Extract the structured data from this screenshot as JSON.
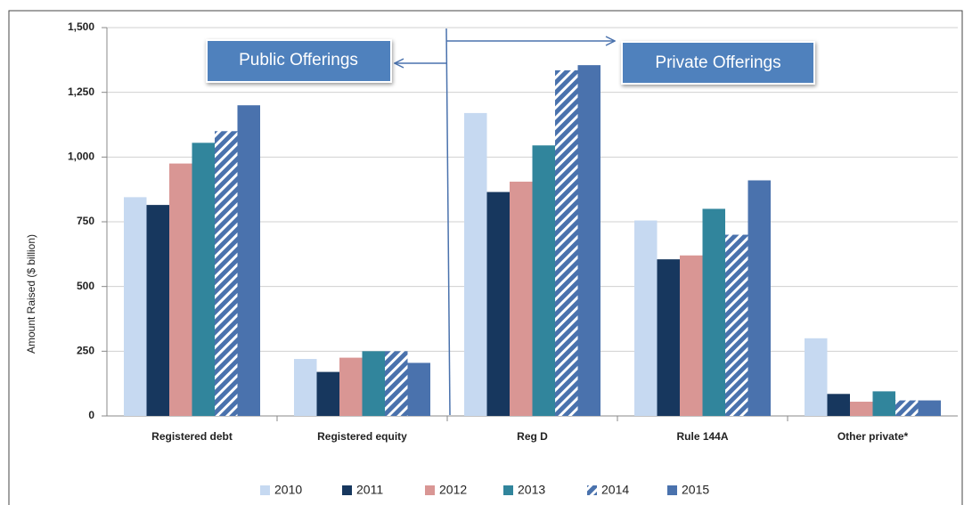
{
  "chart_data": {
    "type": "bar",
    "ylabel": "Amount Raised ($ billion)",
    "annotations": [
      "Public Offerings",
      "Private Offerings"
    ],
    "categories": [
      "Registered debt",
      "Registered equity",
      "Reg D",
      "Rule 144A",
      "Other private*"
    ],
    "series": [
      {
        "name": "2010",
        "color": "#c6d9f1",
        "values": [
          845,
          220,
          1170,
          755,
          300
        ]
      },
      {
        "name": "2011",
        "color": "#17375e",
        "values": [
          815,
          170,
          865,
          605,
          85
        ]
      },
      {
        "name": "2012",
        "color": "#d99694",
        "values": [
          975,
          225,
          905,
          620,
          55
        ]
      },
      {
        "name": "2013",
        "color": "#31859c",
        "values": [
          1055,
          250,
          1045,
          800,
          95
        ]
      },
      {
        "name": "2014",
        "color": "#4a72ad",
        "hatch": true,
        "values": [
          1100,
          250,
          1335,
          700,
          60
        ]
      },
      {
        "name": "2015",
        "color": "#4a72ad",
        "values": [
          1200,
          205,
          1355,
          910,
          60
        ]
      }
    ],
    "ylim": [
      0,
      1500
    ],
    "yticks": [
      0,
      250,
      500,
      750,
      {
        "value": 1000,
        "label": "1,000"
      },
      {
        "value": 1250,
        "label": "1,250"
      },
      {
        "value": 1500,
        "label": "1,500"
      }
    ],
    "grid": true,
    "legend": "bottom"
  }
}
